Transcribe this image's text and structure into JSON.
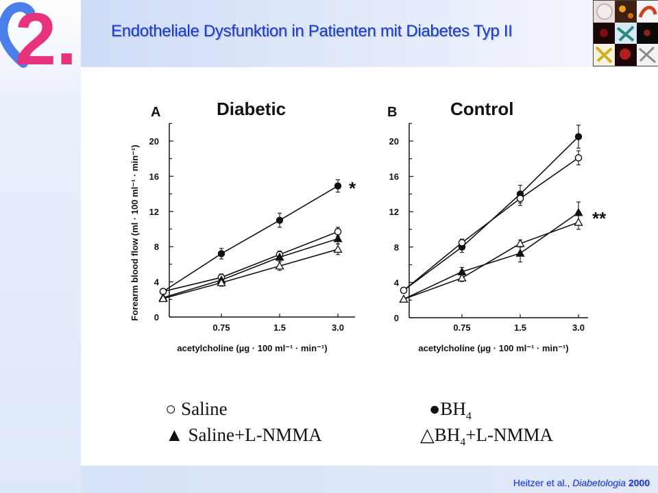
{
  "slide": {
    "title": "Endotheliale Dysfunktion in Patienten mit Diabetes Typ II",
    "logo_text": "2.",
    "citation_authors": "Heitzer et al., ",
    "citation_journal": "Diabetologia",
    "citation_year": "2000"
  },
  "legend": [
    {
      "symbol": "○",
      "label": "Saline"
    },
    {
      "symbol": "●",
      "label": "BH",
      "sub": "4",
      "suffix": ""
    },
    {
      "symbol": "▲",
      "label": "Saline+L-NMMA"
    },
    {
      "symbol": "△",
      "label": "BH",
      "sub": "4",
      "suffix": "+L-NMMA"
    }
  ],
  "chart_data": [
    {
      "type": "line",
      "panel_letter": "A",
      "title": "Diabetic",
      "xlabel": "acetylcholine (µg · 100 ml⁻¹ · min⁻¹)",
      "ylabel": "Forearm blood flow (ml · 100 ml⁻¹ · min⁻¹)",
      "x": [
        0,
        0.75,
        1.5,
        3.0
      ],
      "x_tick_labels": [
        "",
        "0.75",
        "1.5",
        "3.0"
      ],
      "ylim": [
        0,
        22
      ],
      "y_ticks": [
        0,
        4,
        8,
        12,
        16,
        20
      ],
      "annotation": "*",
      "series": [
        {
          "marker": "filled-circle",
          "values": [
            2.9,
            7.2,
            11.0,
            14.9
          ],
          "errors": [
            0.3,
            0.6,
            0.8,
            0.7
          ]
        },
        {
          "marker": "open-circle",
          "values": [
            2.9,
            4.5,
            7.1,
            9.7
          ],
          "errors": [
            0.3,
            0.4,
            0.4,
            0.5
          ]
        },
        {
          "marker": "filled-triangle",
          "values": [
            2.2,
            4.2,
            6.8,
            8.9
          ],
          "errors": [
            0.3,
            0.4,
            0.5,
            0.6
          ]
        },
        {
          "marker": "open-triangle",
          "values": [
            2.1,
            3.9,
            5.8,
            7.7
          ],
          "errors": [
            0.3,
            0.4,
            0.5,
            0.6
          ]
        }
      ]
    },
    {
      "type": "line",
      "panel_letter": "B",
      "title": "Control",
      "xlabel": "acetylcholine (µg · 100 ml⁻¹ · min⁻¹)",
      "ylabel": "",
      "x": [
        0,
        0.75,
        1.5,
        3.0
      ],
      "x_tick_labels": [
        "",
        "0.75",
        "1.5",
        "3.0"
      ],
      "ylim": [
        0,
        22
      ],
      "y_ticks": [
        0,
        4,
        8,
        12,
        16,
        20
      ],
      "annotation": "**",
      "series": [
        {
          "marker": "filled-circle",
          "values": [
            3.1,
            8.0,
            14.0,
            20.5
          ],
          "errors": [
            0.3,
            0.6,
            1.0,
            1.3
          ]
        },
        {
          "marker": "open-circle",
          "values": [
            3.1,
            8.5,
            13.5,
            18.1
          ],
          "errors": [
            0.3,
            0.4,
            0.8,
            0.8
          ]
        },
        {
          "marker": "filled-triangle",
          "values": [
            2.1,
            5.2,
            7.3,
            11.9
          ],
          "errors": [
            0.3,
            0.5,
            1.0,
            1.2
          ]
        },
        {
          "marker": "open-triangle",
          "values": [
            2.1,
            4.5,
            8.4,
            10.8
          ],
          "errors": [
            0.3,
            0.4,
            0.4,
            0.8
          ]
        }
      ]
    }
  ],
  "colors": {
    "title_blue": "#1a3bd6",
    "logo_pink": "#e8327d",
    "logo_blue": "#4a7ee8"
  }
}
